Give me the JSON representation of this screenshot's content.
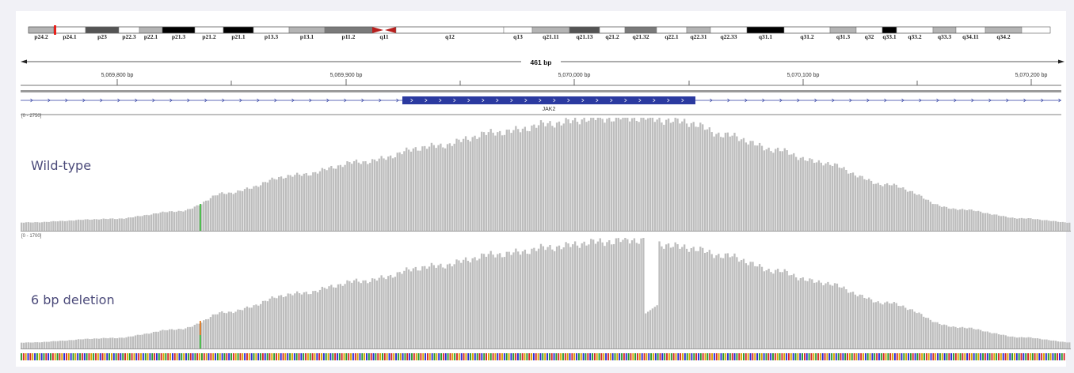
{
  "ideogram": {
    "bands": [
      "p24.2",
      "p24.1",
      "p23",
      "p22.3",
      "p22.1",
      "p21.3",
      "p21.2",
      "p21.1",
      "p13.3",
      "p13.1",
      "p11.2",
      "q11",
      "q12",
      "q13",
      "q21.11",
      "q21.13",
      "q21.2",
      "q21.32",
      "q22.1",
      "q22.31",
      "q22.33",
      "q31.1",
      "q31.2",
      "q31.3",
      "q32",
      "q33.1",
      "q33.2",
      "q33.3",
      "q34.11",
      "q34.2"
    ],
    "highlight_color": "#e8211b",
    "centromere_color": "#b8201e"
  },
  "ruler": {
    "span_label": "461 bp",
    "ticks": [
      "5,069,800 bp",
      "5,069,900 bp",
      "5,070,000 bp",
      "5,070,100 bp",
      "5,070,200 bp"
    ]
  },
  "gene": {
    "name": "JAK2",
    "color": "#2b3aa0"
  },
  "tracks": [
    {
      "name": "Wild-type",
      "range": "[0 - 2750]"
    },
    {
      "name": "6 bp deletion",
      "range": "[0 - 1700]"
    }
  ],
  "chart_data": {
    "type": "bar",
    "xlabel": "",
    "ylabel": "",
    "x_range": [
      5069760,
      5070221
    ],
    "series": [
      {
        "name": "Wild-type",
        "ylim": [
          0,
          2750
        ],
        "keypoints_x": [
          5069760,
          5069800,
          5069830,
          5069850,
          5069880,
          5069910,
          5069940,
          5069970,
          5069995,
          5070010,
          5070030,
          5070050,
          5070070,
          5070090,
          5070110,
          5070140,
          5070170,
          5070200,
          5070221
        ],
        "keypoints_y": [
          200,
          290,
          480,
          920,
          1350,
          1680,
          2050,
          2400,
          2620,
          2730,
          2750,
          2660,
          2320,
          1980,
          1670,
          1120,
          530,
          300,
          200
        ]
      },
      {
        "name": "6 bp deletion",
        "ylim": [
          0,
          1700
        ],
        "keypoints_x": [
          5069760,
          5069800,
          5069830,
          5069850,
          5069880,
          5069910,
          5069940,
          5069970,
          5069995,
          5070010,
          5070030,
          5070050,
          5070070,
          5070090,
          5070110,
          5070140,
          5070170,
          5070200,
          5070221
        ],
        "keypoints_y": [
          90,
          160,
          300,
          560,
          840,
          1040,
          1260,
          1450,
          1560,
          1630,
          1670,
          1560,
          1420,
          1200,
          1020,
          700,
          330,
          170,
          95
        ],
        "deletion_x": [
          5070034,
          5070040
        ],
        "deletion_depth": 540
      }
    ]
  }
}
